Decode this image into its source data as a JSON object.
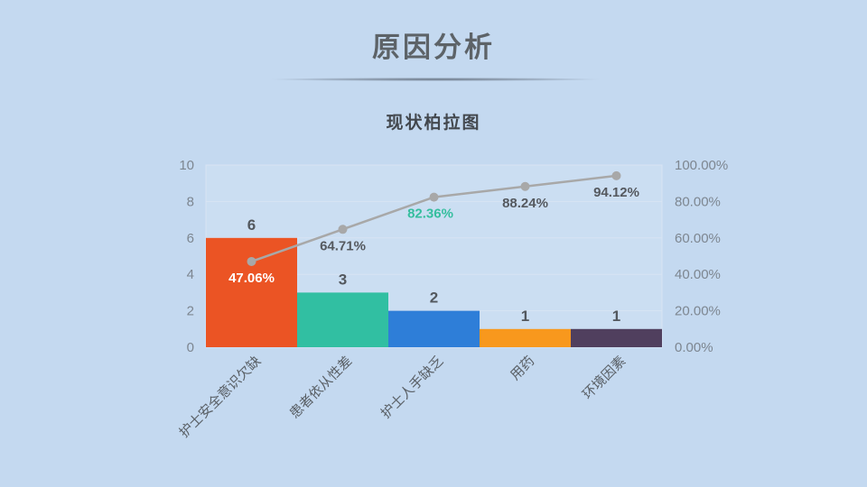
{
  "header": {
    "title": "原因分析"
  },
  "chart_data": {
    "type": "pareto (bar + line)",
    "title": "现状柏拉图",
    "categories": [
      "护士安全意识欠缺",
      "患者依从性差",
      "护士人手缺乏",
      "用药",
      "环境因素"
    ],
    "series": [
      {
        "name": "频数",
        "type": "bar",
        "values": [
          6,
          3,
          2,
          1,
          1
        ]
      },
      {
        "name": "累计百分比",
        "type": "line",
        "values": [
          47.06,
          64.71,
          82.36,
          88.24,
          94.12
        ]
      }
    ],
    "bar_labels": [
      "6",
      "3",
      "2",
      "1",
      "1"
    ],
    "bar_colors": [
      "#eb5424",
      "#31bfa2",
      "#2e7ed8",
      "#f8981d",
      "#503f5e"
    ],
    "cumulative_labels": [
      "47.06%",
      "64.71%",
      "82.36%",
      "88.24%",
      "94.12%"
    ],
    "cumulative_label_colors": [
      "#ffffff",
      "#55595f",
      "#35be9e",
      "#55595f",
      "#55595f"
    ],
    "left_axis": {
      "min": 0,
      "max": 10,
      "tick_labels": [
        "0",
        "2",
        "4",
        "6",
        "8",
        "10"
      ]
    },
    "right_axis": {
      "min": 0,
      "max": 100,
      "tick_labels": [
        "0.00%",
        "20.00%",
        "40.00%",
        "60.00%",
        "80.00%",
        "100.00%"
      ]
    },
    "line_color": "#a8a8a8",
    "marker_color": "#a8a8a8",
    "grid": true,
    "gridline_color": "#d8e4f3",
    "axis_label_color": "#7d8690",
    "bar_value_label_color": "#53585e",
    "category_label_color": "#5a6066",
    "legend": "none",
    "background": "#c4d9f0"
  }
}
